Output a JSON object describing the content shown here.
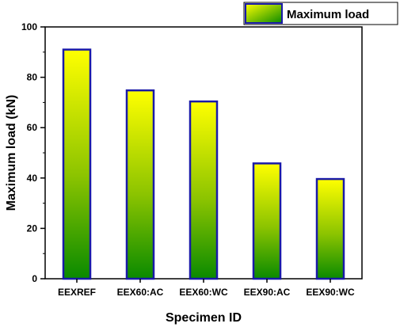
{
  "chart_data": {
    "type": "bar",
    "categories": [
      "EEXREF",
      "EEX60:AC",
      "EEX60:WC",
      "EEX90:AC",
      "EEX90:WC"
    ],
    "series": [
      {
        "name": "Maximum load",
        "values": [
          91,
          74.8,
          70.4,
          45.8,
          39.6
        ]
      }
    ],
    "xlabel": "Specimen ID",
    "ylabel": "Maximum load (kN)",
    "ylim": [
      0,
      100
    ],
    "yticks": [
      0,
      20,
      40,
      60,
      80,
      100
    ],
    "grid": false,
    "legend_position": "top-right",
    "colors": {
      "bar_top": "#ffff00",
      "bar_bottom": "#0a8a00",
      "bar_border": "#1a1aa8",
      "axis": "#000000"
    }
  }
}
